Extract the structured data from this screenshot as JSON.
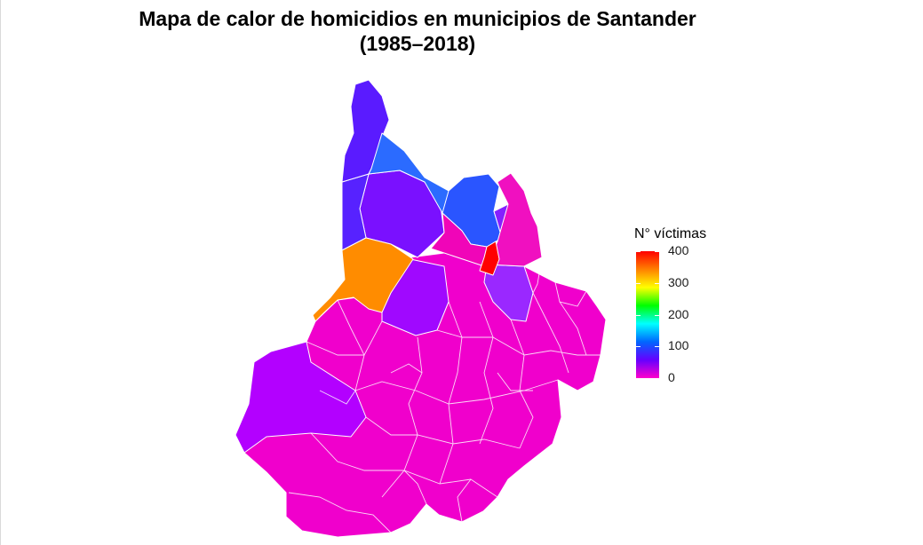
{
  "title_line1": "Mapa de calor de homicidios en municipios de Santander",
  "title_line2": "(1985–2018)",
  "legend": {
    "title": "N° víctimas",
    "scale_min": 0,
    "scale_max": 400,
    "ticks": [
      {
        "value": 400,
        "label": "400"
      },
      {
        "value": 300,
        "label": "300"
      },
      {
        "value": 200,
        "label": "200"
      },
      {
        "value": 100,
        "label": "100"
      },
      {
        "value": 0,
        "label": "0"
      }
    ],
    "gradient_colors": [
      "#ff0000",
      "#ff8000",
      "#ffff00",
      "#00ff00",
      "#00ffff",
      "#0066ff",
      "#6600ff",
      "#ff00cc"
    ]
  },
  "map_regions": [
    {
      "name": "region-north-tip",
      "value": 90,
      "color": "#5a1bff"
    },
    {
      "name": "region-north-east-band",
      "value": 120,
      "color": "#2b6bff"
    },
    {
      "name": "region-north-east-block",
      "value": 115,
      "color": "#2a55ff"
    },
    {
      "name": "region-north-west",
      "value": 95,
      "color": "#5722ff"
    },
    {
      "name": "region-north-central",
      "value": 75,
      "color": "#7a10ff"
    },
    {
      "name": "region-orange-west",
      "value": 330,
      "color": "#ff8c00"
    },
    {
      "name": "region-red-east",
      "value": 400,
      "color": "#ff0000"
    },
    {
      "name": "region-east-small-purple",
      "value": 70,
      "color": "#8520ff"
    },
    {
      "name": "region-central-purple",
      "value": 55,
      "color": "#a008ff"
    },
    {
      "name": "region-southwest-purple",
      "value": 50,
      "color": "#b300ff"
    },
    {
      "name": "region-east-strip-violet",
      "value": 60,
      "color": "#9a28ff"
    },
    {
      "name": "region-main-magenta",
      "value": 20,
      "color": "#f000cc"
    }
  ]
}
